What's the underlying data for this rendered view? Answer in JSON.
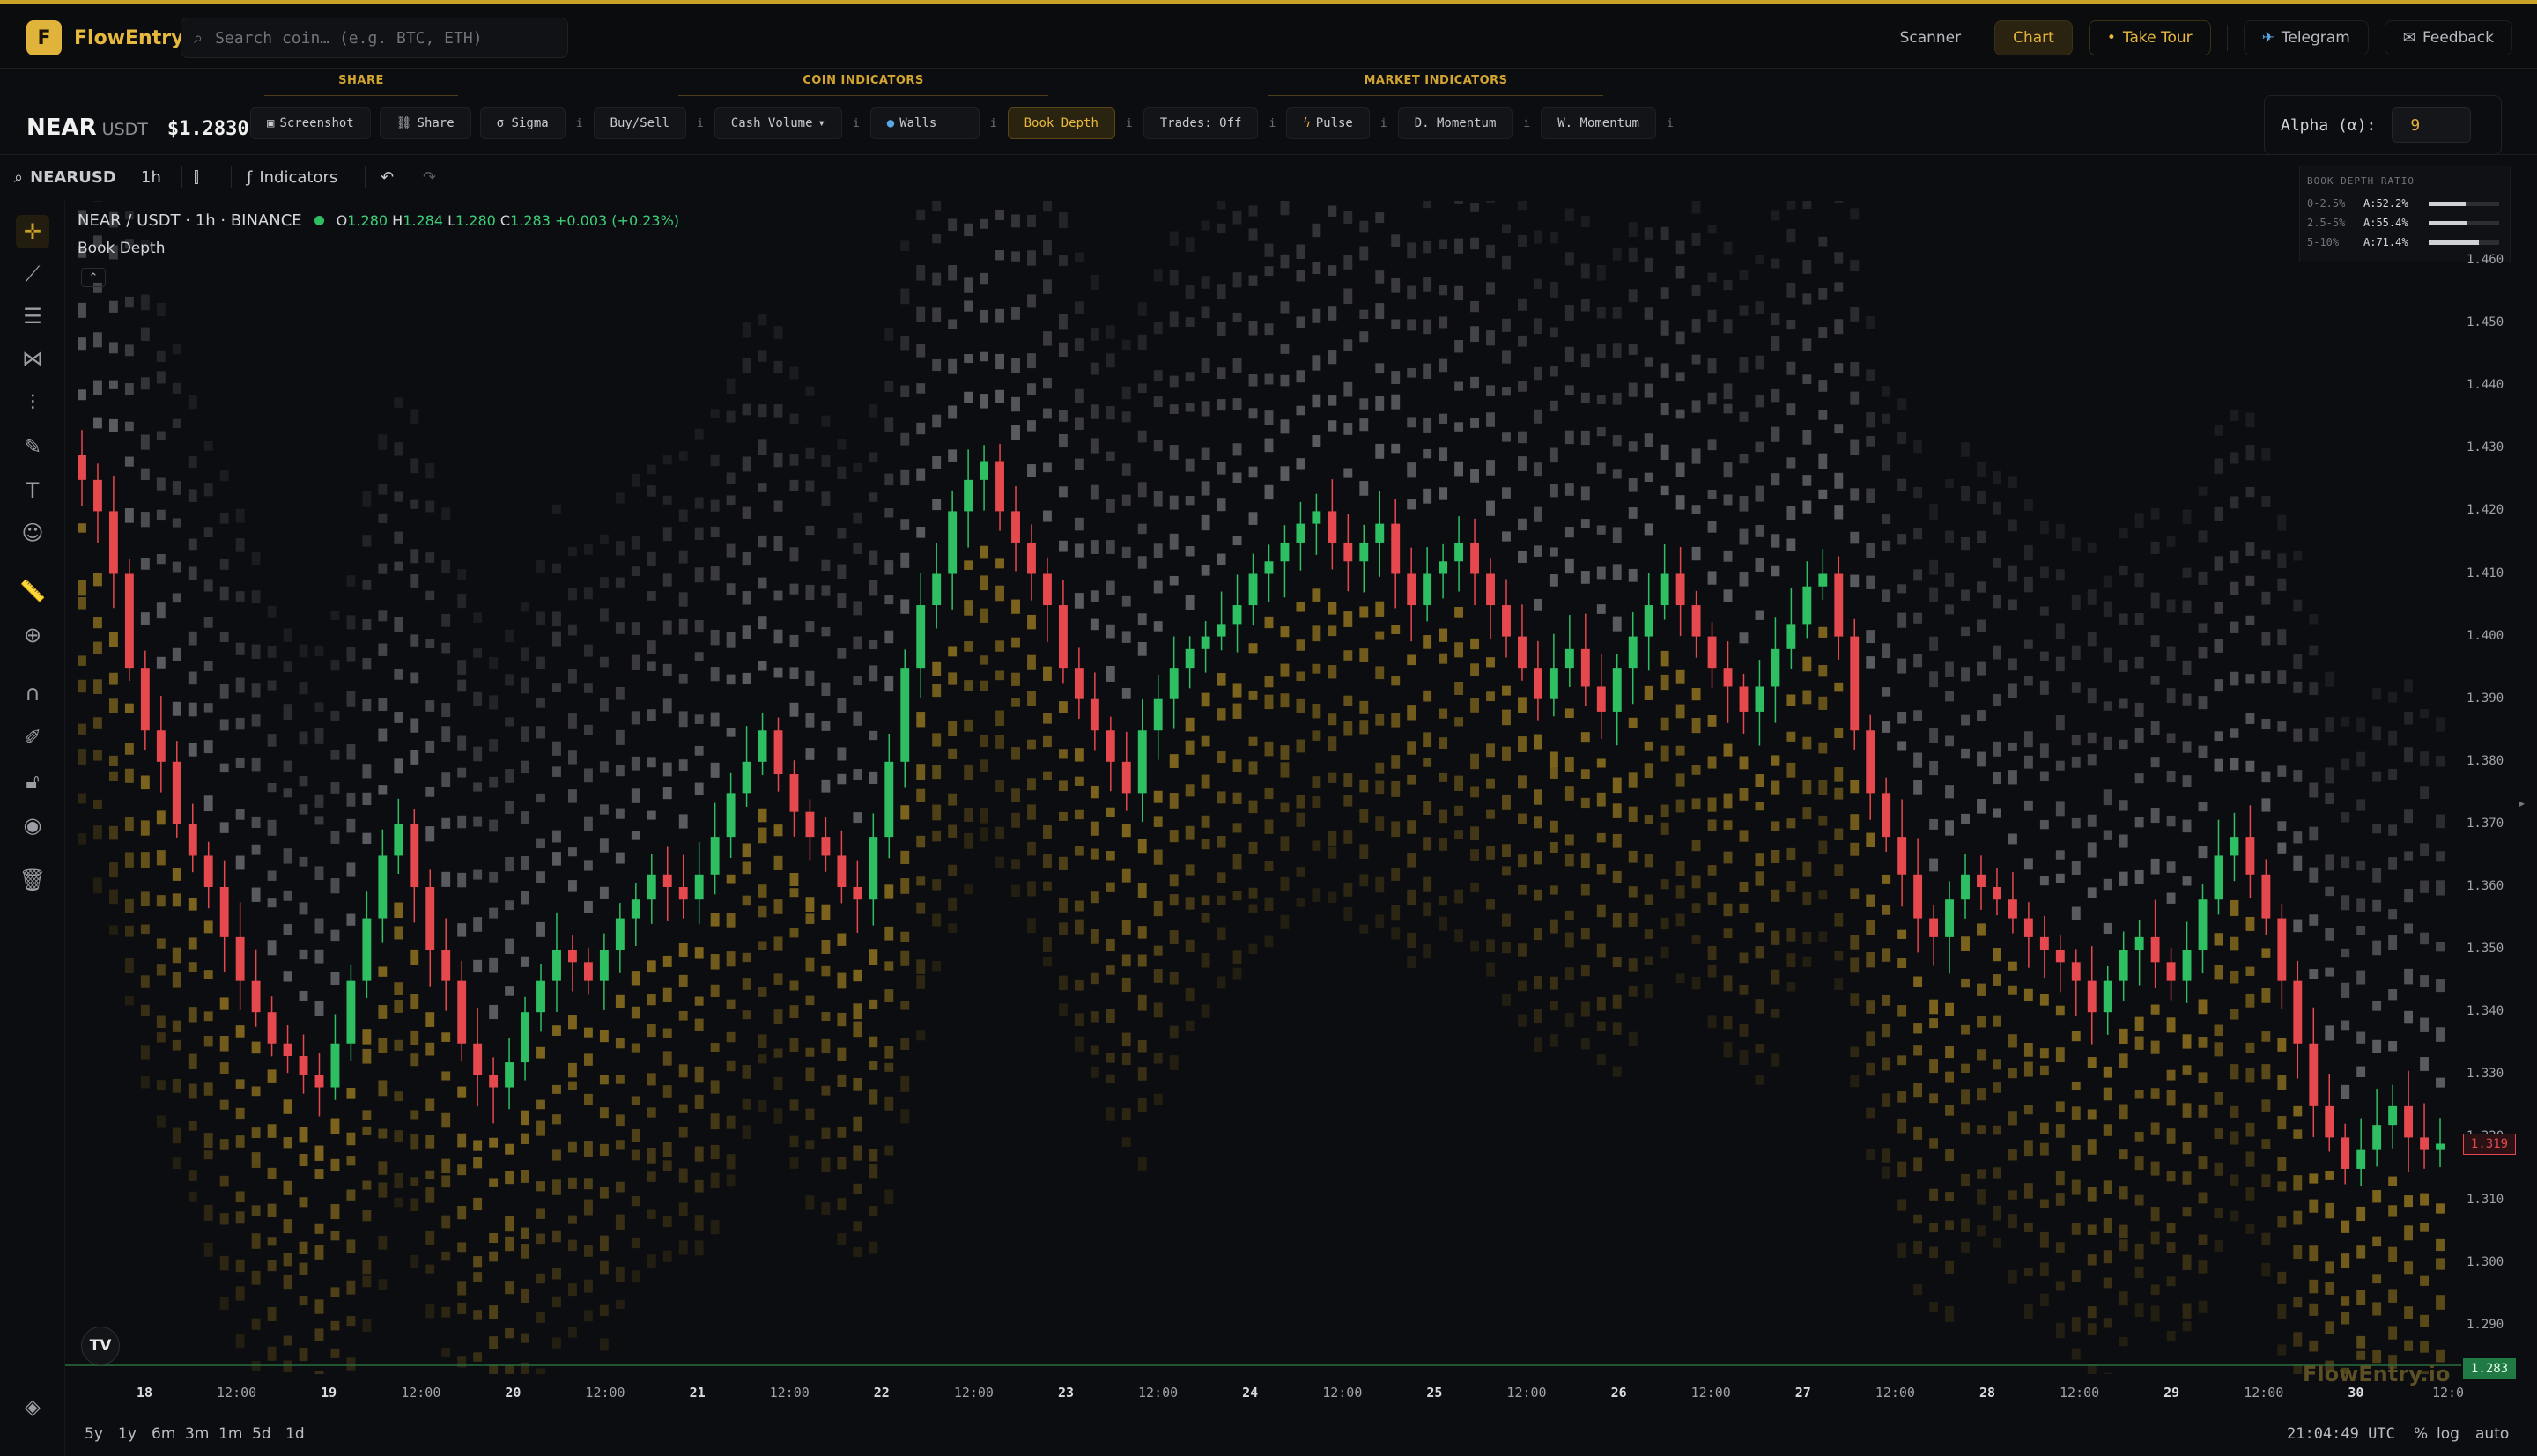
{
  "app": {
    "name": "FlowEntry",
    "logo_letter": "F"
  },
  "search": {
    "placeholder": "Search coin… (e.g. BTC, ETH)"
  },
  "nav": {
    "scanner": "Scanner",
    "chart": "Chart",
    "take_tour": "Take Tour",
    "telegram": "Telegram",
    "feedback": "Feedback"
  },
  "groups": {
    "share": "SHARE",
    "coin": "COIN INDICATORS",
    "market": "MARKET INDICATORS"
  },
  "symbol": {
    "base": "NEAR",
    "quote": "USDT",
    "price": "$1.2830"
  },
  "controls": {
    "screenshot": "Screenshot",
    "share": "Share",
    "sigma": "σ Sigma",
    "buysell": "Buy/Sell",
    "cash_volume": "Cash Volume",
    "walls": "Walls",
    "book_depth": "Book Depth",
    "trades": "Trades: Off",
    "pulse": "Pulse",
    "d_momentum": "D. Momentum",
    "w_momentum": "W. Momentum",
    "info": "i"
  },
  "alpha": {
    "label": "Alpha (α):",
    "value": "9"
  },
  "chartbar": {
    "symbol_input": "NEARUSD",
    "interval": "1h",
    "indicators": "Indicators"
  },
  "legend": {
    "title": "NEAR / USDT · 1h · BINANCE",
    "o_label": "O",
    "o": "1.280",
    "h_label": "H",
    "h": "1.284",
    "l_label": "L",
    "l": "1.280",
    "c_label": "C",
    "c": "1.283",
    "change": "+0.003 (+0.23%)",
    "indicator_name": "Book Depth"
  },
  "ratio": {
    "title": "BOOK DEPTH RATIO",
    "rows": [
      {
        "label": "0-2.5%",
        "value": "A:52.2%",
        "fraction": 0.522
      },
      {
        "label": "2.5-5%",
        "value": "A:55.4%",
        "fraction": 0.554
      },
      {
        "label": "5-10%",
        "value": "A:71.4%",
        "fraction": 0.714
      }
    ]
  },
  "yaxis": [
    "1.460",
    "1.450",
    "1.440",
    "1.430",
    "1.420",
    "1.410",
    "1.400",
    "1.390",
    "1.380",
    "1.370",
    "1.360",
    "1.350",
    "1.340",
    "1.330",
    "1.320",
    "1.310",
    "1.300",
    "1.290"
  ],
  "ytags": {
    "last": "1.319",
    "current": "1.283"
  },
  "xaxis": [
    {
      "t": "18",
      "day": true
    },
    {
      "t": "12:00"
    },
    {
      "t": "19",
      "day": true
    },
    {
      "t": "12:00"
    },
    {
      "t": "20",
      "day": true
    },
    {
      "t": "12:00"
    },
    {
      "t": "21",
      "day": true
    },
    {
      "t": "12:00"
    },
    {
      "t": "22",
      "day": true
    },
    {
      "t": "12:00"
    },
    {
      "t": "23",
      "day": true
    },
    {
      "t": "12:00"
    },
    {
      "t": "24",
      "day": true
    },
    {
      "t": "12:00"
    },
    {
      "t": "25",
      "day": true
    },
    {
      "t": "12:00"
    },
    {
      "t": "26",
      "day": true
    },
    {
      "t": "12:00"
    },
    {
      "t": "27",
      "day": true
    },
    {
      "t": "12:00"
    },
    {
      "t": "28",
      "day": true
    },
    {
      "t": "12:00"
    },
    {
      "t": "29",
      "day": true
    },
    {
      "t": "12:00"
    },
    {
      "t": "30",
      "day": true
    },
    {
      "t": "12:0"
    }
  ],
  "ranges": [
    "5y",
    "1y",
    "6m",
    "3m",
    "1m",
    "5d",
    "1d"
  ],
  "bottom": {
    "time": "21:04:49 UTC",
    "pct": "%",
    "log": "log",
    "auto": "auto"
  },
  "watermark": "FlowEntry.io",
  "tv_logo": "TV",
  "colors": {
    "accent": "#e3b23c",
    "up": "#2fbf63",
    "down": "#e5484d",
    "bid_depth": "#a07f22",
    "ask_depth": "#9a9ca2"
  },
  "chart_data": {
    "type": "candlestick",
    "interval": "1h",
    "pair": "NEAR/USDT",
    "ylim": [
      1.285,
      1.465
    ],
    "close_path": [
      1.425,
      1.42,
      1.41,
      1.395,
      1.385,
      1.38,
      1.37,
      1.365,
      1.36,
      1.352,
      1.345,
      1.34,
      1.335,
      1.333,
      1.33,
      1.328,
      1.335,
      1.345,
      1.355,
      1.365,
      1.37,
      1.36,
      1.35,
      1.345,
      1.335,
      1.33,
      1.328,
      1.332,
      1.34,
      1.345,
      1.35,
      1.348,
      1.345,
      1.35,
      1.355,
      1.358,
      1.362,
      1.36,
      1.358,
      1.362,
      1.368,
      1.375,
      1.38,
      1.385,
      1.378,
      1.372,
      1.368,
      1.365,
      1.36,
      1.358,
      1.368,
      1.38,
      1.395,
      1.405,
      1.41,
      1.42,
      1.425,
      1.428,
      1.42,
      1.415,
      1.41,
      1.405,
      1.395,
      1.39,
      1.385,
      1.38,
      1.375,
      1.385,
      1.39,
      1.395,
      1.398,
      1.4,
      1.402,
      1.405,
      1.41,
      1.412,
      1.415,
      1.418,
      1.42,
      1.415,
      1.412,
      1.415,
      1.418,
      1.41,
      1.405,
      1.41,
      1.412,
      1.415,
      1.41,
      1.405,
      1.4,
      1.395,
      1.39,
      1.395,
      1.398,
      1.392,
      1.388,
      1.395,
      1.4,
      1.405,
      1.41,
      1.405,
      1.4,
      1.395,
      1.392,
      1.388,
      1.392,
      1.398,
      1.402,
      1.408,
      1.41,
      1.4,
      1.385,
      1.375,
      1.368,
      1.362,
      1.355,
      1.352,
      1.358,
      1.362,
      1.36,
      1.358,
      1.355,
      1.352,
      1.35,
      1.348,
      1.345,
      1.34,
      1.345,
      1.35,
      1.352,
      1.348,
      1.345,
      1.35,
      1.358,
      1.365,
      1.368,
      1.362,
      1.355,
      1.345,
      1.335,
      1.325,
      1.32,
      1.315,
      1.318,
      1.322,
      1.325,
      1.32,
      1.318,
      1.319
    ]
  }
}
